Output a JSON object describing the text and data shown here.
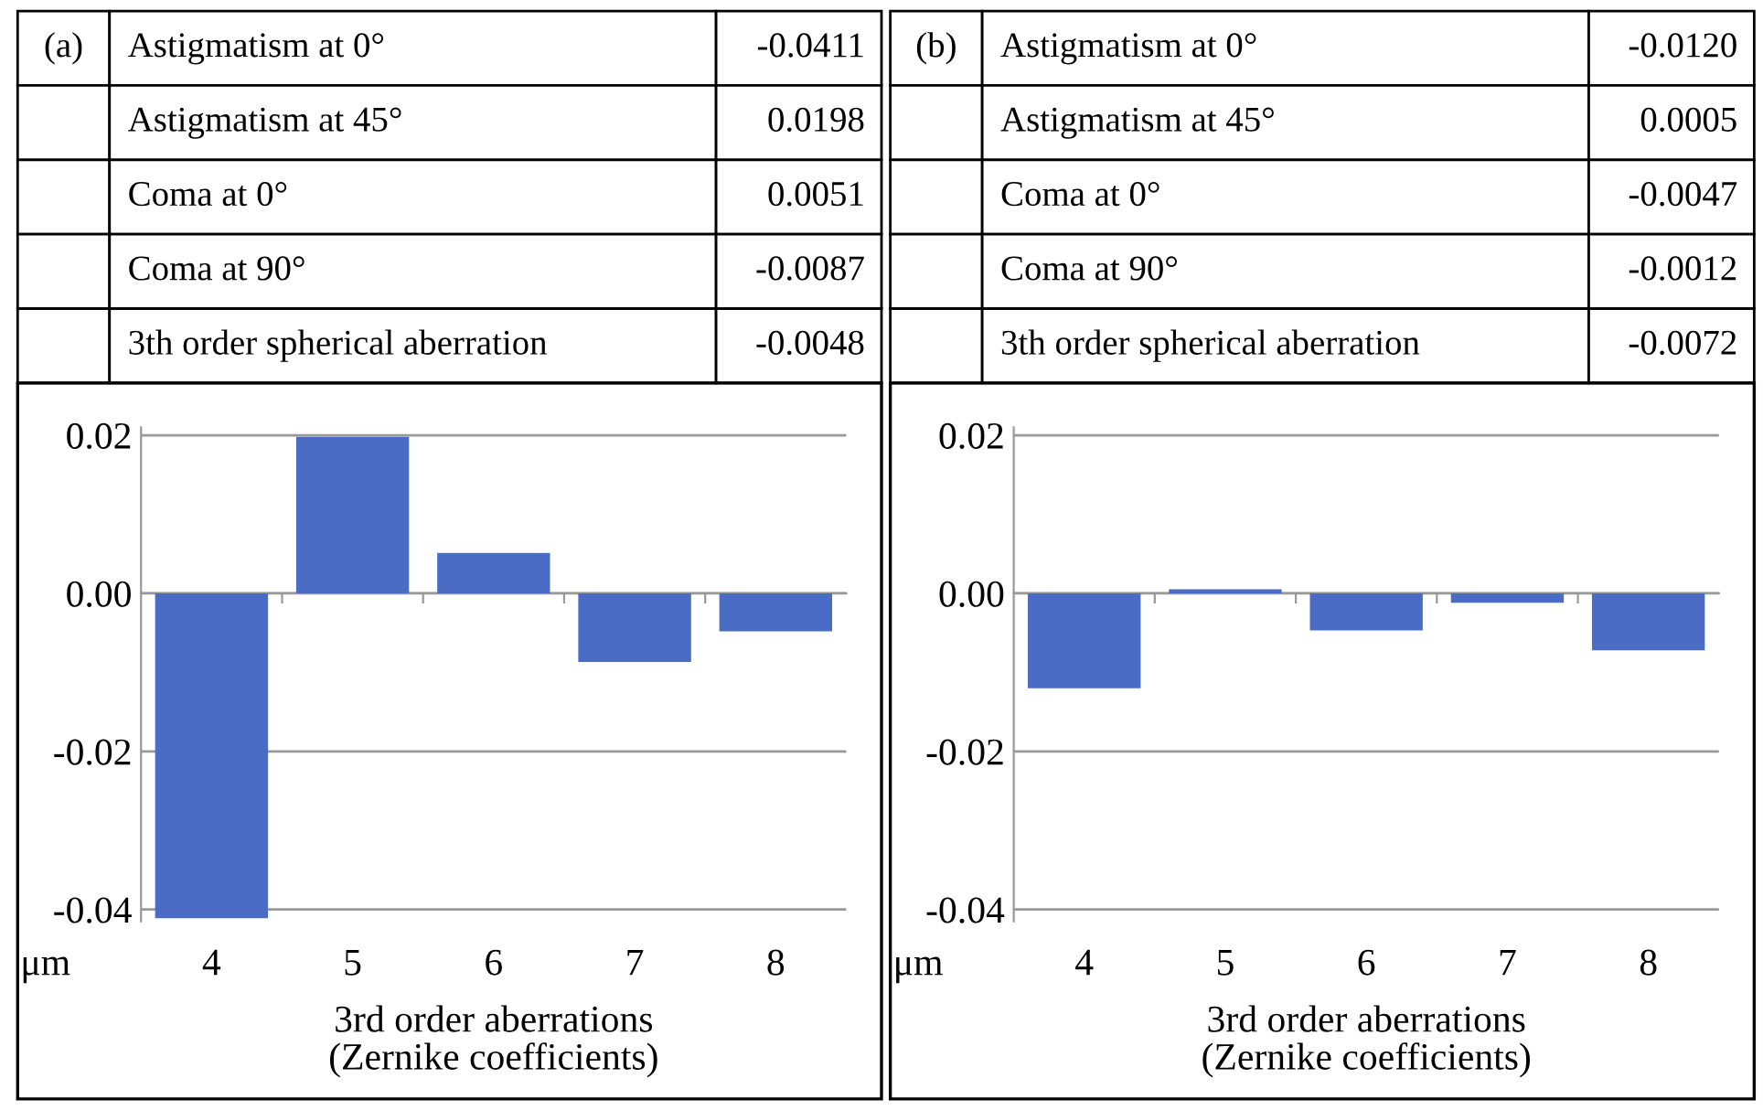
{
  "chart_data": [
    {
      "type": "bar",
      "title": "(a)",
      "xlabel": "3rd order aberrations\n(Zernike coefficients)",
      "ylabel": "μm",
      "categories": [
        "4",
        "5",
        "6",
        "7",
        "8"
      ],
      "values": [
        -0.0411,
        0.0198,
        0.0051,
        -0.0087,
        -0.0048
      ],
      "annotations": [
        "Astigmatism at 0°",
        "-0.0411",
        "Astigmatism at 45°",
        "0.0198",
        "Coma at 0°",
        "0.0051",
        "Coma at 90°",
        "-0.0087",
        "3th order spherical aberration",
        "-0.0048"
      ],
      "color": "#4a6cc4",
      "ylim": [
        -0.0415,
        0.021
      ],
      "yticks": [
        {
          "value": -0.04,
          "label": "-0.04"
        },
        {
          "value": -0.02,
          "label": "-0.02"
        },
        {
          "value": 0,
          "label": "0.00"
        },
        {
          "value": 0.02,
          "label": "0.02"
        }
      ],
      "grid": "y"
    },
    {
      "type": "bar",
      "title": "(b)",
      "xlabel": "3rd order aberrations\n(Zernike coefficients)",
      "ylabel": "μm",
      "categories": [
        "4",
        "5",
        "6",
        "7",
        "8"
      ],
      "values": [
        -0.012,
        0.0005,
        -0.0047,
        -0.0012,
        -0.0072
      ],
      "annotations": [
        "Astigmatism at 0°",
        "-0.0120",
        "Astigmatism at 45°",
        "0.0005",
        "Coma at 0°",
        "-0.0047",
        "Coma at 90°",
        "-0.0012",
        "3th order spherical aberration",
        "-0.0072"
      ],
      "color": "#4a6cc4",
      "ylim": [
        -0.0415,
        0.021
      ],
      "yticks": [
        {
          "value": -0.04,
          "label": "-0.04"
        },
        {
          "value": -0.02,
          "label": "-0.02"
        },
        {
          "value": 0,
          "label": "0.00"
        },
        {
          "value": 0.02,
          "label": "0.02"
        }
      ],
      "grid": "y"
    }
  ]
}
